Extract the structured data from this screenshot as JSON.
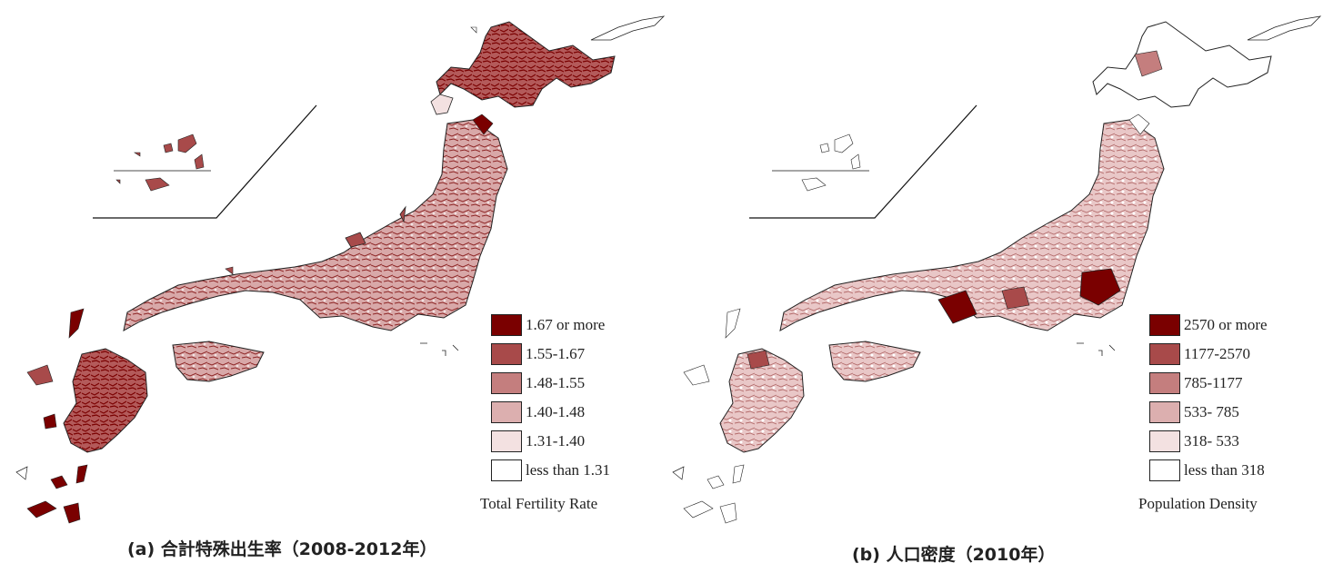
{
  "panels": [
    {
      "caption": "(a) 合計特殊出生率（2008-2012年）",
      "legend_title": "Total Fertility Rate",
      "legend": [
        {
          "label": "1.67 or more",
          "color": "#7a0000"
        },
        {
          "label": "1.55-1.67",
          "color": "#a84a4a"
        },
        {
          "label": "1.48-1.55",
          "color": "#c47e7e"
        },
        {
          "label": "1.40-1.48",
          "color": "#dcafaf"
        },
        {
          "label": "1.31-1.40",
          "color": "#f3e1e1"
        },
        {
          "label": "less than 1.31",
          "color": "#ffffff"
        }
      ]
    },
    {
      "caption": "(b) 人口密度（2010年）",
      "legend_title": "Population Density",
      "legend": [
        {
          "label": "2570 or more",
          "color": "#7a0000"
        },
        {
          "label": "1177-2570",
          "color": "#a84a4a"
        },
        {
          "label": "785-1177",
          "color": "#c47e7e"
        },
        {
          "label": "533- 785",
          "color": "#dcafaf"
        },
        {
          "label": "318- 533",
          "color": "#f3e1e1"
        },
        {
          "label": "less than 318",
          "color": "#ffffff"
        }
      ]
    }
  ]
}
